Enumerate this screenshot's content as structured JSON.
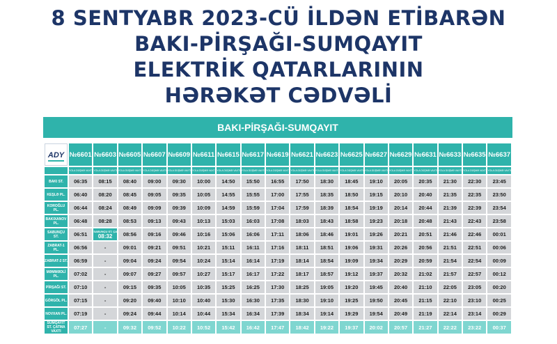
{
  "headline": [
    "8 SENTYABR 2023-CÜ İLDƏN ETİBARƏN",
    "BAKI-PİRŞAĞI-SUMQAYIT",
    "ELEKTRİK QATARLARININ",
    "HƏRƏKƏT CƏDVƏLİ"
  ],
  "route": "BAKI-PİRŞAĞI-SUMQAYIT",
  "logo": "ADY",
  "sub_header": "YOLA DÜŞMƏ VAXTI",
  "trains": [
    "№6601",
    "№6603",
    "№6605",
    "№6607",
    "№6609",
    "№6611",
    "№6615",
    "№6617",
    "№6619",
    "№6621",
    "№6623",
    "№6625",
    "№6627",
    "№6629",
    "№6631",
    "№6633",
    "№6635",
    "№6637"
  ],
  "rows": [
    {
      "station": "BAKI ST.",
      "times": [
        "06:35",
        "08:15",
        "08:40",
        "09:00",
        "09:30",
        "10:00",
        "14:50",
        "15:50",
        "16:55",
        "17:50",
        "18:30",
        "18:45",
        "19:10",
        "20:05",
        "20:35",
        "21:30",
        "22:30",
        "23:45"
      ]
    },
    {
      "station": "KEŞLƏ PL.",
      "times": [
        "06:40",
        "08:20",
        "08:45",
        "09:05",
        "09:35",
        "10:05",
        "14:55",
        "15:55",
        "17:00",
        "17:55",
        "18:35",
        "18:50",
        "19:15",
        "20:10",
        "20:40",
        "21:35",
        "22:35",
        "23:50"
      ]
    },
    {
      "station": "KOROĞLU PL.",
      "times": [
        "06:44",
        "08:24",
        "08:49",
        "09:09",
        "09:39",
        "10:09",
        "14:59",
        "15:59",
        "17:04",
        "17:59",
        "18:39",
        "18:54",
        "19:19",
        "20:14",
        "20:44",
        "21:39",
        "22:39",
        "23:54"
      ]
    },
    {
      "station": "BAKIXANOV PL.",
      "times": [
        "06:48",
        "08:28",
        "08:53",
        "09:13",
        "09:43",
        "10:13",
        "15:03",
        "16:03",
        "17:08",
        "18:03",
        "18:43",
        "18:58",
        "19:23",
        "20:18",
        "20:48",
        "21:43",
        "22:43",
        "23:58"
      ]
    },
    {
      "station": "SABUNÇU ST.",
      "times": [
        "06:51",
        "08:32",
        "08:56",
        "09:16",
        "09:46",
        "10:16",
        "15:06",
        "16:06",
        "17:11",
        "18:06",
        "18:46",
        "19:01",
        "19:26",
        "20:21",
        "20:51",
        "21:46",
        "22:46",
        "00:01"
      ],
      "arrival_note": "SABUNÇU ST. ÇATMA VAXTI"
    },
    {
      "station": "ZABRAT-1 PL.",
      "times": [
        "06:56",
        "-",
        "09:01",
        "09:21",
        "09:51",
        "10:21",
        "15:11",
        "16:11",
        "17:16",
        "18:11",
        "18:51",
        "19:06",
        "19:31",
        "20:26",
        "20:56",
        "21:51",
        "22:51",
        "00:06"
      ]
    },
    {
      "station": "ZABRAT-2 ST.",
      "times": [
        "06:59",
        "-",
        "09:04",
        "09:24",
        "09:54",
        "10:24",
        "15:14",
        "16:14",
        "17:19",
        "18:14",
        "18:54",
        "19:09",
        "19:34",
        "20:29",
        "20:59",
        "21:54",
        "22:54",
        "00:09"
      ]
    },
    {
      "station": "MƏMMƏDLİ PL.",
      "times": [
        "07:02",
        "-",
        "09:07",
        "09:27",
        "09:57",
        "10:27",
        "15:17",
        "16:17",
        "17:22",
        "18:17",
        "18:57",
        "19:12",
        "19:37",
        "20:32",
        "21:02",
        "21:57",
        "22:57",
        "00:12"
      ]
    },
    {
      "station": "PİRŞAĞI ST.",
      "times": [
        "07:10",
        "-",
        "09:15",
        "09:35",
        "10:05",
        "10:35",
        "15:25",
        "16:25",
        "17:30",
        "18:25",
        "19:05",
        "19:20",
        "19:45",
        "20:40",
        "21:10",
        "22:05",
        "23:05",
        "00:20"
      ]
    },
    {
      "station": "GÖRGÖL PL.",
      "times": [
        "07:15",
        "-",
        "09:20",
        "09:40",
        "10:10",
        "10:40",
        "15:30",
        "16:30",
        "17:35",
        "18:30",
        "19:10",
        "19:25",
        "19:50",
        "20:45",
        "21:15",
        "22:10",
        "23:10",
        "00:25"
      ]
    },
    {
      "station": "NOVXAN PL.",
      "times": [
        "07:19",
        "-",
        "09:24",
        "09:44",
        "10:14",
        "10:44",
        "15:34",
        "16:34",
        "17:39",
        "18:34",
        "19:14",
        "19:29",
        "19:54",
        "20:49",
        "21:19",
        "22:14",
        "23:14",
        "00:29"
      ]
    },
    {
      "station": "SUMQAYIT ST. ÇATMA VAXTI",
      "times": [
        "07:27",
        "-",
        "09:32",
        "09:52",
        "10:22",
        "10:52",
        "15:42",
        "16:42",
        "17:47",
        "18:42",
        "19:22",
        "19:37",
        "20:02",
        "20:57",
        "21:27",
        "22:22",
        "23:22",
        "00:37"
      ]
    }
  ],
  "colors": {
    "navy": "#1d3567",
    "teal": "#2fb3ab",
    "cell_gray": "#d4d6d9",
    "arrival_row": "#7fd6d0"
  }
}
